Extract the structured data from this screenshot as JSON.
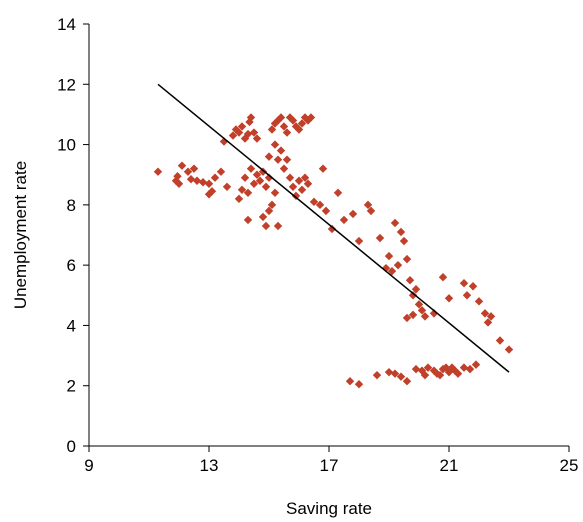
{
  "chart_data": {
    "type": "scatter",
    "title": "",
    "xlabel": "Saving rate",
    "ylabel": "Unemployment rate",
    "xlim": [
      9,
      25
    ],
    "ylim": [
      0,
      14
    ],
    "xticks": [
      9,
      13,
      17,
      21,
      25
    ],
    "yticks": [
      0,
      2,
      4,
      6,
      8,
      10,
      12,
      14
    ],
    "grid": false,
    "legend": "none",
    "marker_color": "#c0402a",
    "line_color": "#000000",
    "trendline": {
      "x": [
        11.3,
        23.0
      ],
      "y": [
        12.0,
        2.45
      ]
    },
    "points": [
      [
        11.3,
        9.1
      ],
      [
        11.9,
        8.8
      ],
      [
        11.95,
        8.95
      ],
      [
        12.0,
        8.7
      ],
      [
        12.1,
        9.3
      ],
      [
        12.3,
        9.1
      ],
      [
        12.4,
        8.85
      ],
      [
        12.5,
        9.2
      ],
      [
        12.6,
        8.8
      ],
      [
        12.8,
        8.75
      ],
      [
        13.0,
        8.7
      ],
      [
        13.0,
        8.35
      ],
      [
        13.1,
        8.45
      ],
      [
        13.2,
        8.9
      ],
      [
        13.4,
        9.1
      ],
      [
        13.6,
        8.6
      ],
      [
        13.5,
        10.1
      ],
      [
        13.8,
        10.3
      ],
      [
        13.9,
        10.5
      ],
      [
        14.0,
        10.4
      ],
      [
        14.1,
        10.6
      ],
      [
        14.2,
        10.2
      ],
      [
        14.3,
        10.35
      ],
      [
        14.35,
        10.75
      ],
      [
        14.4,
        10.9
      ],
      [
        14.5,
        10.4
      ],
      [
        14.6,
        10.2
      ],
      [
        14.0,
        8.2
      ],
      [
        14.1,
        8.5
      ],
      [
        14.2,
        8.9
      ],
      [
        14.3,
        8.4
      ],
      [
        14.4,
        9.2
      ],
      [
        14.5,
        8.7
      ],
      [
        14.6,
        9.0
      ],
      [
        14.7,
        8.8
      ],
      [
        14.8,
        9.1
      ],
      [
        14.9,
        8.6
      ],
      [
        15.0,
        8.9
      ],
      [
        14.3,
        7.5
      ],
      [
        14.8,
        7.6
      ],
      [
        14.9,
        7.3
      ],
      [
        15.0,
        7.8
      ],
      [
        15.1,
        8.0
      ],
      [
        15.2,
        8.4
      ],
      [
        15.3,
        7.3
      ],
      [
        15.0,
        9.6
      ],
      [
        15.2,
        10.0
      ],
      [
        15.3,
        9.5
      ],
      [
        15.4,
        9.8
      ],
      [
        15.5,
        9.2
      ],
      [
        15.6,
        9.5
      ],
      [
        15.7,
        8.9
      ],
      [
        15.8,
        8.6
      ],
      [
        15.9,
        8.3
      ],
      [
        16.0,
        8.8
      ],
      [
        16.1,
        8.5
      ],
      [
        16.2,
        8.9
      ],
      [
        16.3,
        8.7
      ],
      [
        15.1,
        10.5
      ],
      [
        15.2,
        10.7
      ],
      [
        15.3,
        10.8
      ],
      [
        15.4,
        10.9
      ],
      [
        15.5,
        10.6
      ],
      [
        15.6,
        10.4
      ],
      [
        15.7,
        10.9
      ],
      [
        15.8,
        10.8
      ],
      [
        15.9,
        10.6
      ],
      [
        16.0,
        10.5
      ],
      [
        16.1,
        10.7
      ],
      [
        16.2,
        10.9
      ],
      [
        16.3,
        10.8
      ],
      [
        16.4,
        10.9
      ],
      [
        16.5,
        8.1
      ],
      [
        16.7,
        8.0
      ],
      [
        16.8,
        9.2
      ],
      [
        16.9,
        7.8
      ],
      [
        17.1,
        7.2
      ],
      [
        17.3,
        8.4
      ],
      [
        17.5,
        7.5
      ],
      [
        17.8,
        7.7
      ],
      [
        18.0,
        6.8
      ],
      [
        18.3,
        8.0
      ],
      [
        18.4,
        7.8
      ],
      [
        18.7,
        6.9
      ],
      [
        18.9,
        5.9
      ],
      [
        19.0,
        6.3
      ],
      [
        19.1,
        5.8
      ],
      [
        19.2,
        7.4
      ],
      [
        19.3,
        6.0
      ],
      [
        19.4,
        7.1
      ],
      [
        19.5,
        6.8
      ],
      [
        19.6,
        6.2
      ],
      [
        19.7,
        5.5
      ],
      [
        19.8,
        5.0
      ],
      [
        19.9,
        5.2
      ],
      [
        20.0,
        4.7
      ],
      [
        20.1,
        4.5
      ],
      [
        20.2,
        4.3
      ],
      [
        19.6,
        4.25
      ],
      [
        19.8,
        4.35
      ],
      [
        20.5,
        4.4
      ],
      [
        20.8,
        5.6
      ],
      [
        21.0,
        4.9
      ],
      [
        21.5,
        5.4
      ],
      [
        21.6,
        5.0
      ],
      [
        21.8,
        5.3
      ],
      [
        22.0,
        4.8
      ],
      [
        22.2,
        4.4
      ],
      [
        22.3,
        4.1
      ],
      [
        22.4,
        4.3
      ],
      [
        22.7,
        3.5
      ],
      [
        23.0,
        3.2
      ],
      [
        17.7,
        2.15
      ],
      [
        18.0,
        2.05
      ],
      [
        18.6,
        2.35
      ],
      [
        19.0,
        2.45
      ],
      [
        19.2,
        2.4
      ],
      [
        19.4,
        2.3
      ],
      [
        19.6,
        2.15
      ],
      [
        19.9,
        2.55
      ],
      [
        20.1,
        2.5
      ],
      [
        20.3,
        2.6
      ],
      [
        20.5,
        2.5
      ],
      [
        20.6,
        2.4
      ],
      [
        20.8,
        2.55
      ],
      [
        20.9,
        2.6
      ],
      [
        21.0,
        2.45
      ],
      [
        21.1,
        2.6
      ],
      [
        21.2,
        2.5
      ],
      [
        21.5,
        2.6
      ],
      [
        21.7,
        2.55
      ],
      [
        21.9,
        2.7
      ],
      [
        20.2,
        2.35
      ],
      [
        20.7,
        2.35
      ],
      [
        21.3,
        2.4
      ]
    ]
  }
}
